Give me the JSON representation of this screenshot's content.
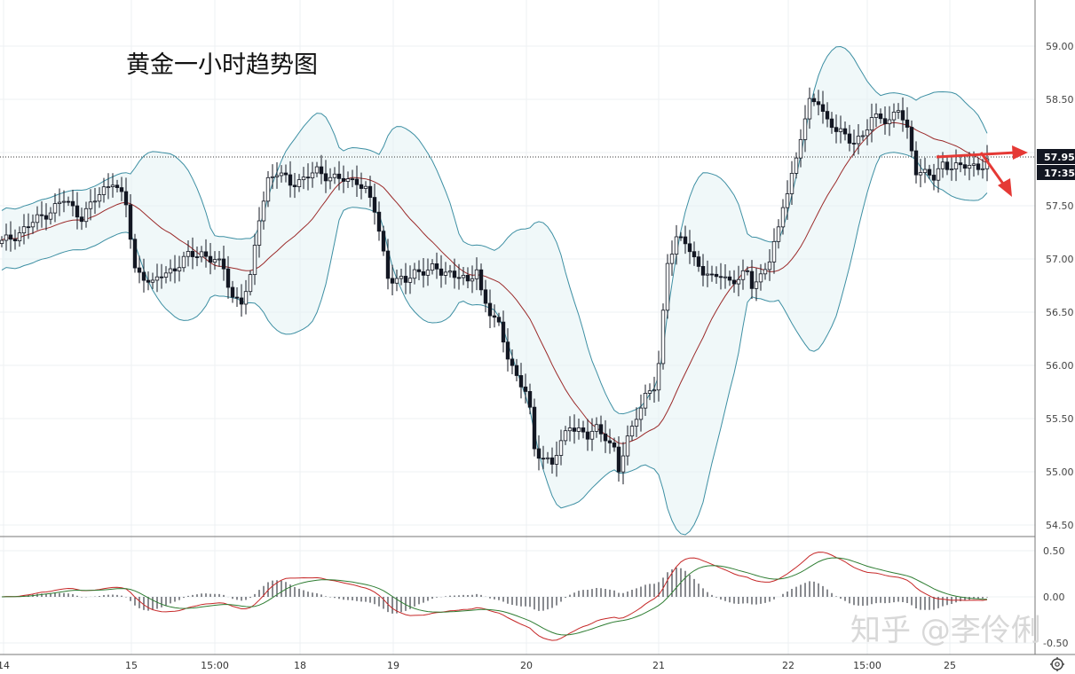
{
  "chart_data": [
    {
      "type": "candlestick",
      "title": "黄金一小时趋势图",
      "ylim": [
        54.32,
        59.33
      ],
      "y_ticks": [
        "59.00",
        "58.50",
        "58.00",
        "57.50",
        "57.00",
        "56.50",
        "56.00",
        "55.50",
        "55.00",
        "54.50"
      ],
      "x_ticks": [
        "14",
        "15",
        "15:00",
        "18",
        "19",
        "20",
        "21",
        "22",
        "15:00",
        "25"
      ],
      "current_price": "57.95",
      "countdown": "17:35",
      "grid": true,
      "indicators": [
        "Bollinger Bands",
        "SMA"
      ],
      "close_path": [
        [
          0,
          57.15
        ],
        [
          4,
          57.25
        ],
        [
          9,
          57.4
        ],
        [
          14,
          57.55
        ],
        [
          18,
          57.4
        ],
        [
          22,
          57.6
        ],
        [
          25,
          57.75
        ],
        [
          28,
          57.5
        ],
        [
          30,
          56.9
        ],
        [
          32,
          56.85
        ],
        [
          34,
          56.75
        ],
        [
          36,
          56.85
        ],
        [
          39,
          56.92
        ],
        [
          42,
          57.02
        ],
        [
          45,
          57.06
        ],
        [
          48,
          56.98
        ],
        [
          50,
          56.9
        ],
        [
          52,
          56.65
        ],
        [
          54,
          56.6
        ],
        [
          56,
          56.8
        ],
        [
          58,
          57.4
        ],
        [
          60,
          57.75
        ],
        [
          62,
          57.8
        ],
        [
          65,
          57.72
        ],
        [
          68,
          57.75
        ],
        [
          71,
          57.82
        ],
        [
          74,
          57.78
        ],
        [
          78,
          57.72
        ],
        [
          80,
          57.75
        ],
        [
          82,
          57.65
        ],
        [
          84,
          57.45
        ],
        [
          86,
          57.05
        ],
        [
          87,
          56.85
        ],
        [
          89,
          56.8
        ],
        [
          91,
          56.78
        ],
        [
          93,
          56.88
        ],
        [
          95,
          56.9
        ],
        [
          97,
          56.9
        ],
        [
          99,
          56.87
        ],
        [
          101,
          56.88
        ],
        [
          103,
          56.85
        ],
        [
          105,
          56.75
        ],
        [
          107,
          56.92
        ],
        [
          108,
          56.7
        ],
        [
          110,
          56.5
        ],
        [
          112,
          56.35
        ],
        [
          114,
          56.1
        ],
        [
          116,
          55.9
        ],
        [
          118,
          55.75
        ],
        [
          119,
          55.55
        ],
        [
          120,
          55.2
        ],
        [
          122,
          55.15
        ],
        [
          124,
          55.08
        ],
        [
          126,
          55.25
        ],
        [
          128,
          55.45
        ],
        [
          130,
          55.4
        ],
        [
          132,
          55.32
        ],
        [
          134,
          55.4
        ],
        [
          136,
          55.35
        ],
        [
          138,
          55.2
        ],
        [
          139,
          55.0
        ],
        [
          141,
          55.3
        ],
        [
          143,
          55.55
        ],
        [
          145,
          55.7
        ],
        [
          147,
          55.78
        ],
        [
          148,
          56.0
        ],
        [
          149,
          56.5
        ],
        [
          150,
          57.0
        ],
        [
          152,
          57.18
        ],
        [
          154,
          57.15
        ],
        [
          156,
          57.0
        ],
        [
          158,
          56.9
        ],
        [
          160,
          56.8
        ],
        [
          162,
          56.85
        ],
        [
          164,
          56.8
        ],
        [
          166,
          56.82
        ],
        [
          168,
          56.85
        ],
        [
          169,
          56.75
        ],
        [
          171,
          56.85
        ],
        [
          173,
          57.0
        ],
        [
          175,
          57.25
        ],
        [
          176,
          57.5
        ],
        [
          178,
          57.8
        ],
        [
          179,
          57.95
        ],
        [
          180,
          58.15
        ],
        [
          182,
          58.45
        ],
        [
          184,
          58.5
        ],
        [
          186,
          58.3
        ],
        [
          188,
          58.2
        ],
        [
          190,
          58.15
        ],
        [
          192,
          58.12
        ],
        [
          194,
          58.15
        ],
        [
          196,
          58.3
        ],
        [
          198,
          58.35
        ],
        [
          200,
          58.3
        ],
        [
          202,
          58.4
        ],
        [
          204,
          58.2
        ],
        [
          206,
          57.85
        ],
        [
          208,
          57.8
        ],
        [
          210,
          57.75
        ],
        [
          212,
          57.9
        ],
        [
          214,
          57.88
        ],
        [
          216,
          57.85
        ],
        [
          218,
          57.88
        ],
        [
          220,
          57.87
        ],
        [
          222,
          57.92
        ]
      ]
    },
    {
      "type": "macd",
      "y_ticks": [
        "0.50",
        "0.00",
        "-0.50"
      ],
      "ylim": [
        -0.6,
        0.62
      ]
    }
  ],
  "watermark": "知乎 @李伶俐",
  "annotations": "two red arrows pointing right and down-right at the latest price"
}
